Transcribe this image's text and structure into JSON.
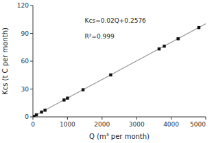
{
  "chart_data": {
    "type": "scatter",
    "xlabel": "Q (m³ per month)",
    "ylabel": "Kcs (t C per month)",
    "annotations": [
      "Kcs=0.02Q+0.2576",
      "R²=0.999"
    ],
    "series": [
      {
        "type": "scatter",
        "marker": "square",
        "color": "#111111",
        "x": [
          30,
          100,
          250,
          350,
          900,
          1000,
          1450,
          2250,
          3650,
          3800,
          4200,
          4800
        ],
        "values": [
          0.5,
          2.2,
          5.2,
          7.2,
          18.2,
          20.2,
          29.2,
          45.2,
          73.2,
          76.2,
          84.2,
          96.2
        ]
      },
      {
        "type": "line",
        "line_style": "solid",
        "color": "#999999",
        "x": [
          0,
          5000
        ],
        "values": [
          0.2576,
          100.2576
        ]
      }
    ],
    "xlim": [
      0,
      5000
    ],
    "ylim": [
      0,
      120
    ],
    "xticks": [
      0,
      1000,
      2000,
      3000,
      4000,
      5000
    ],
    "yticks": [
      0,
      30,
      60,
      90,
      120
    ],
    "grid": false
  }
}
